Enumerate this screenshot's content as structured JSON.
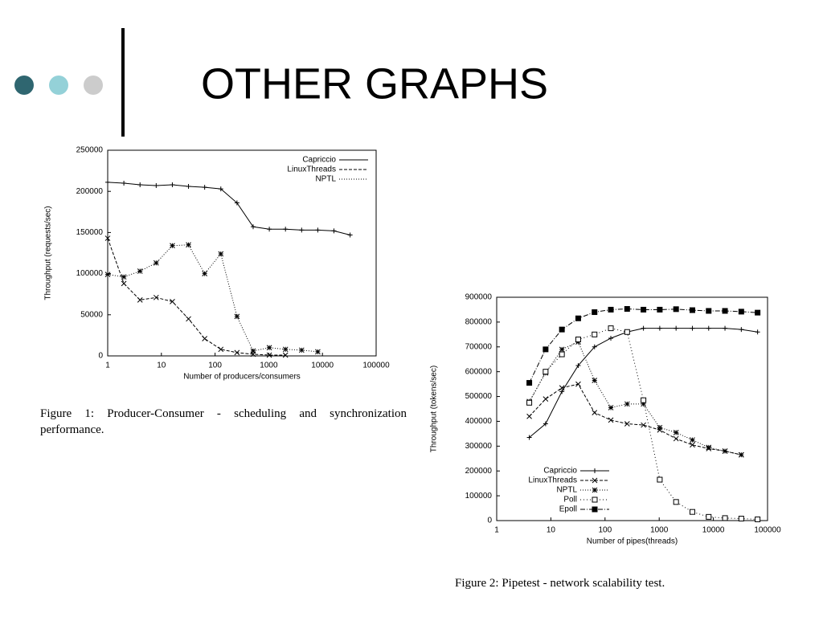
{
  "title": "OTHER GRAPHS",
  "chart_data": [
    {
      "type": "line",
      "xscale": "log",
      "xlabel": "Number of producers/consumers",
      "ylabel": "Throughput (requests/sec)",
      "caption": "Figure 1:  Producer-Consumer - scheduling and synchronization performance.",
      "xlim": [
        1,
        100000
      ],
      "ylim": [
        0,
        250000
      ],
      "xticks": [
        1,
        10,
        100,
        1000,
        10000,
        100000
      ],
      "yticks": [
        0,
        50000,
        100000,
        150000,
        200000,
        250000
      ],
      "legend": "top-right",
      "x": [
        1,
        2,
        4,
        8,
        16,
        32,
        64,
        128,
        256,
        512,
        1024,
        2048,
        4096,
        8192,
        16384,
        32768
      ],
      "series": [
        {
          "name": "Capriccio",
          "color": "#000000",
          "dash": "none",
          "marker": "plus",
          "values": [
            211000,
            210000,
            208000,
            207000,
            208000,
            206000,
            205000,
            203000,
            186000,
            157000,
            154000,
            154000,
            153000,
            153000,
            152000,
            147000
          ]
        },
        {
          "name": "LinuxThreads",
          "color": "#000000",
          "dash": "4,2",
          "marker": "x",
          "values": [
            143000,
            88000,
            68000,
            71000,
            66000,
            45000,
            21000,
            8000,
            4000,
            2000,
            1000,
            1000,
            null,
            null,
            null,
            null
          ]
        },
        {
          "name": "NPTL",
          "color": "#000000",
          "dash": "1,2",
          "marker": "star",
          "values": [
            99000,
            96000,
            103000,
            113000,
            134000,
            135000,
            100000,
            124000,
            48000,
            6000,
            10000,
            8000,
            7000,
            5000,
            null,
            null
          ]
        }
      ]
    },
    {
      "type": "line",
      "xscale": "log",
      "xlabel": "Number of pipes(threads)",
      "ylabel": "Throughput (tokens/sec)",
      "caption": "Figure 2: Pipetest - network scalability test.",
      "xlim": [
        1,
        100000
      ],
      "ylim": [
        0,
        900000
      ],
      "xticks": [
        1,
        10,
        100,
        1000,
        10000,
        100000
      ],
      "yticks": [
        0,
        100000,
        200000,
        300000,
        400000,
        500000,
        600000,
        700000,
        800000,
        900000
      ],
      "legend": "bottom-left",
      "x": [
        4,
        8,
        16,
        32,
        64,
        128,
        256,
        512,
        1024,
        2048,
        4096,
        8192,
        16384,
        32768,
        65536
      ],
      "series": [
        {
          "name": "Capriccio",
          "color": "#000000",
          "dash": "none",
          "marker": "plus",
          "values": [
            335000,
            390000,
            520000,
            625000,
            700000,
            735000,
            760000,
            775000,
            775000,
            775000,
            775000,
            775000,
            775000,
            770000,
            760000
          ]
        },
        {
          "name": "LinuxThreads",
          "color": "#000000",
          "dash": "4,2",
          "marker": "x",
          "values": [
            420000,
            490000,
            535000,
            550000,
            435000,
            405000,
            390000,
            385000,
            365000,
            330000,
            305000,
            290000,
            280000,
            265000,
            null
          ]
        },
        {
          "name": "NPTL",
          "color": "#000000",
          "dash": "1,2",
          "marker": "star",
          "values": [
            480000,
            595000,
            690000,
            720000,
            565000,
            455000,
            470000,
            470000,
            375000,
            355000,
            325000,
            295000,
            280000,
            265000,
            null
          ]
        },
        {
          "name": "Poll",
          "color": "#000000",
          "dash": "1,3",
          "marker": "square-open",
          "values": [
            475000,
            600000,
            670000,
            730000,
            750000,
            775000,
            760000,
            485000,
            165000,
            75000,
            35000,
            15000,
            10000,
            8000,
            5000
          ]
        },
        {
          "name": "Epoll",
          "color": "#000000",
          "dash": "6,2,1,2",
          "marker": "square-filled",
          "values": [
            555000,
            690000,
            770000,
            815000,
            840000,
            850000,
            853000,
            850000,
            850000,
            852000,
            848000,
            845000,
            845000,
            842000,
            838000
          ]
        }
      ]
    }
  ]
}
